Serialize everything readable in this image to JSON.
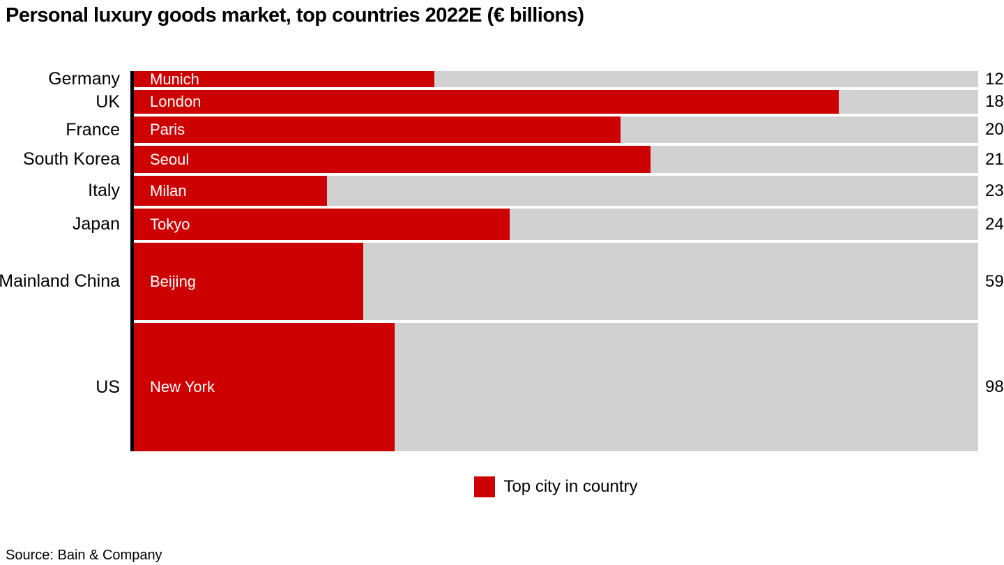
{
  "title": "Personal luxury goods market, top countries 2022E (€ billions)",
  "legend": {
    "label": "Top city in country",
    "swatch_color": "#CC0000"
  },
  "source": "Source: Bain & Company",
  "colors": {
    "city_segment": "#CC0000",
    "country_bar": "#D1D1D1",
    "axis": "#000000",
    "background": "#FFFFFF"
  },
  "chart_data": {
    "type": "bar",
    "orientation": "horizontal",
    "title": "Personal luxury goods market, top countries 2022E (€ billions)",
    "value_unit": "€ billions",
    "legend_entries": [
      "Top city in country"
    ],
    "layout_notes": "Each row height is proportional to the country total value; the red segment length shows the top city's share of the country bar; country totals labeled at right; no gridlines; solid black vertical axis at left of bars.",
    "rows": [
      {
        "country": "Germany",
        "city": "Munich",
        "value": 12,
        "city_share_pct": 35.6
      },
      {
        "country": "UK",
        "city": "London",
        "value": 18,
        "city_share_pct": 83.5
      },
      {
        "country": "France",
        "city": "Paris",
        "value": 20,
        "city_share_pct": 57.6
      },
      {
        "country": "South Korea",
        "city": "Seoul",
        "value": 21,
        "city_share_pct": 61.2
      },
      {
        "country": "Italy",
        "city": "Milan",
        "value": 23,
        "city_share_pct": 22.9
      },
      {
        "country": "Japan",
        "city": "Tokyo",
        "value": 24,
        "city_share_pct": 44.5
      },
      {
        "country": "Mainland China",
        "city": "Beijing",
        "value": 59,
        "city_share_pct": 27.2
      },
      {
        "country": "US",
        "city": "New York",
        "value": 98,
        "city_share_pct": 30.9
      }
    ]
  }
}
